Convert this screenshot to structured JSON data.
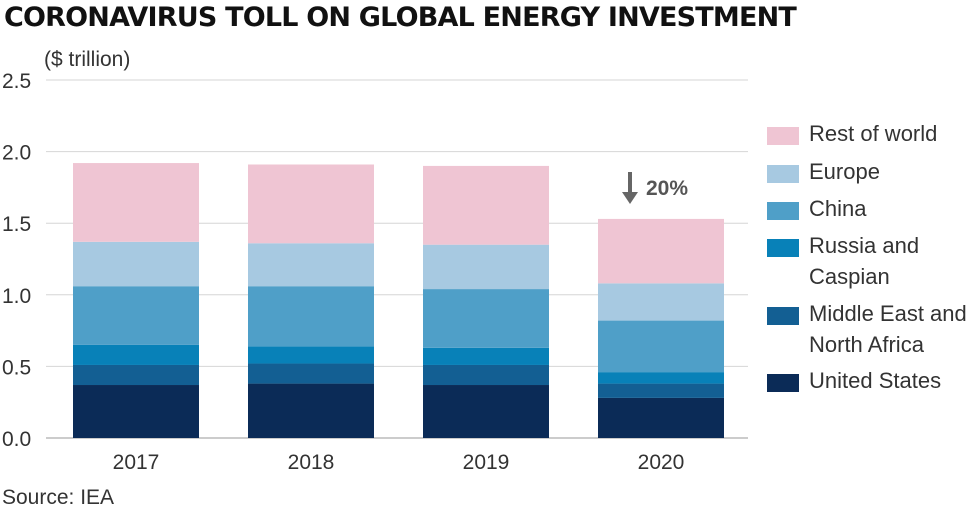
{
  "chart_data": {
    "type": "bar",
    "stacked": true,
    "title": "CORONAVIRUS TOLL ON GLOBAL ENERGY INVESTMENT",
    "ylabel": "($ trillion)",
    "source": "Source: IEA",
    "categories": [
      "2017",
      "2018",
      "2019",
      "2020"
    ],
    "ylim": [
      0,
      2.5
    ],
    "yticks": [
      "0.0",
      "0.5",
      "1.0",
      "1.5",
      "2.0",
      "2.5"
    ],
    "grid": "horizontal",
    "legend": "right",
    "annotation": {
      "category": "2020",
      "text": "20%",
      "direction": "down"
    },
    "series": [
      {
        "name": "United States",
        "color": "#0b2b57",
        "values": [
          0.37,
          0.38,
          0.37,
          0.28
        ]
      },
      {
        "name": "Middle East and North Africa",
        "color": "#135f93",
        "values": [
          0.14,
          0.14,
          0.14,
          0.1
        ]
      },
      {
        "name": "Russia and Caspian",
        "color": "#0881b8",
        "values": [
          0.14,
          0.12,
          0.12,
          0.08
        ]
      },
      {
        "name": "China",
        "color": "#4f9fc8",
        "values": [
          0.41,
          0.42,
          0.41,
          0.36
        ]
      },
      {
        "name": "Europe",
        "color": "#a7c9e1",
        "values": [
          0.31,
          0.3,
          0.31,
          0.26
        ]
      },
      {
        "name": "Rest of world",
        "color": "#efc5d3",
        "values": [
          0.55,
          0.55,
          0.55,
          0.45
        ]
      }
    ]
  },
  "legend_items": [
    {
      "label": "Rest of world",
      "color": "#efc5d3"
    },
    {
      "label": "Europe",
      "color": "#a7c9e1"
    },
    {
      "label": "China",
      "color": "#4f9fc8"
    },
    {
      "label": "Russia and Caspian",
      "color": "#0881b8"
    },
    {
      "label": "Middle East and North Africa",
      "color": "#135f93"
    },
    {
      "label": "United States",
      "color": "#0b2b57"
    }
  ]
}
